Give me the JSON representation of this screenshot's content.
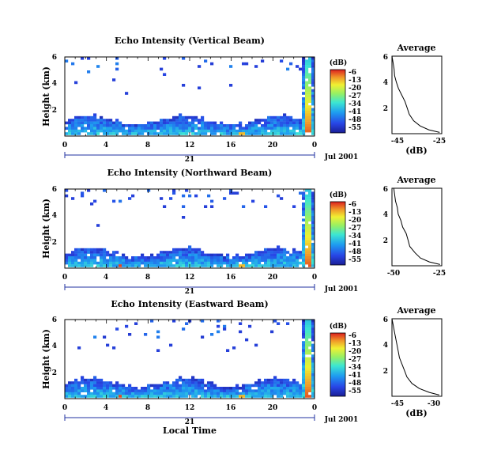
{
  "chart_data": [
    {
      "type": "heatmap",
      "title": "Echo Intensity (Vertical Beam)",
      "ylabel": "Height (km)",
      "xlabel": "",
      "x_ticks": [
        "0",
        "4",
        "8",
        "12",
        "16",
        "20",
        "0"
      ],
      "y_ticks": [
        "6",
        "4",
        "2"
      ],
      "date_day": "21",
      "date_label": "Jul 2001",
      "xlim": [
        0,
        24
      ],
      "ylim": [
        0,
        6
      ],
      "colorbar": {
        "label": "(dB)",
        "ticks": [
          "-6",
          "-13",
          "-20",
          "-27",
          "-34",
          "-41",
          "-48",
          "-55"
        ]
      },
      "average": {
        "title": "Average",
        "xlabel": "(dB)",
        "x_ticks": [
          "-45",
          "-25"
        ],
        "y_ticks": [
          "6",
          "4",
          "2"
        ],
        "xlim": [
          -47,
          -24
        ],
        "profile": [
          [
            -47,
            6.0
          ],
          [
            -46.5,
            5.5
          ],
          [
            -46,
            5.0
          ],
          [
            -45.8,
            4.5
          ],
          [
            -45,
            4.0
          ],
          [
            -44,
            3.5
          ],
          [
            -42.5,
            3.0
          ],
          [
            -41,
            2.5
          ],
          [
            -40,
            2.0
          ],
          [
            -39,
            1.5
          ],
          [
            -37,
            1.0
          ],
          [
            -34,
            0.6
          ],
          [
            -30,
            0.3
          ],
          [
            -25,
            0.1
          ]
        ]
      }
    },
    {
      "type": "heatmap",
      "title": "Echo Intensity (Northward Beam)",
      "ylabel": "Height (km)",
      "xlabel": "",
      "x_ticks": [
        "0",
        "4",
        "8",
        "12",
        "16",
        "20",
        "0"
      ],
      "y_ticks": [
        "6",
        "4",
        "2"
      ],
      "date_day": "21",
      "date_label": "Jul 2001",
      "xlim": [
        0,
        24
      ],
      "ylim": [
        0,
        6
      ],
      "colorbar": {
        "label": "(dB)",
        "ticks": [
          "-6",
          "-13",
          "-20",
          "-27",
          "-34",
          "-41",
          "-48",
          "-55"
        ]
      },
      "average": {
        "title": "Average",
        "xlabel": "",
        "x_ticks": [
          "-50",
          "-25"
        ],
        "y_ticks": [
          "6",
          "4",
          "2"
        ],
        "xlim": [
          -52,
          -24
        ],
        "profile": [
          [
            -51,
            6.0
          ],
          [
            -50.5,
            5.5
          ],
          [
            -50,
            5.0
          ],
          [
            -49,
            4.5
          ],
          [
            -48.5,
            4.0
          ],
          [
            -47,
            3.5
          ],
          [
            -46,
            3.0
          ],
          [
            -44,
            2.5
          ],
          [
            -43,
            2.0
          ],
          [
            -42,
            1.5
          ],
          [
            -39,
            1.0
          ],
          [
            -36,
            0.6
          ],
          [
            -31,
            0.3
          ],
          [
            -25,
            0.1
          ]
        ]
      }
    },
    {
      "type": "heatmap",
      "title": "Echo Intensity (Eastward Beam)",
      "ylabel": "Height (km)",
      "xlabel": "Local Time",
      "x_ticks": [
        "0",
        "4",
        "8",
        "12",
        "16",
        "20",
        "0"
      ],
      "y_ticks": [
        "6",
        "4",
        "2"
      ],
      "date_day": "21",
      "date_label": "Jul 2001",
      "xlim": [
        0,
        24
      ],
      "ylim": [
        0,
        6
      ],
      "colorbar": {
        "label": "(dB)",
        "ticks": [
          "-6",
          "-13",
          "-20",
          "-27",
          "-34",
          "-41",
          "-48",
          "-55"
        ]
      },
      "average": {
        "title": "Average",
        "xlabel": "(dB)",
        "x_ticks": [
          "-45",
          "-30"
        ],
        "y_ticks": [
          "6",
          "4",
          "2"
        ],
        "xlim": [
          -47,
          -27
        ],
        "profile": [
          [
            -47,
            6.0
          ],
          [
            -46.5,
            5.5
          ],
          [
            -46,
            5.0
          ],
          [
            -45.5,
            4.5
          ],
          [
            -45,
            4.0
          ],
          [
            -44.5,
            3.5
          ],
          [
            -44,
            3.0
          ],
          [
            -43,
            2.5
          ],
          [
            -42,
            2.0
          ],
          [
            -41,
            1.5
          ],
          [
            -39,
            1.0
          ],
          [
            -36,
            0.6
          ],
          [
            -32,
            0.3
          ],
          [
            -28,
            0.1
          ]
        ]
      }
    }
  ]
}
